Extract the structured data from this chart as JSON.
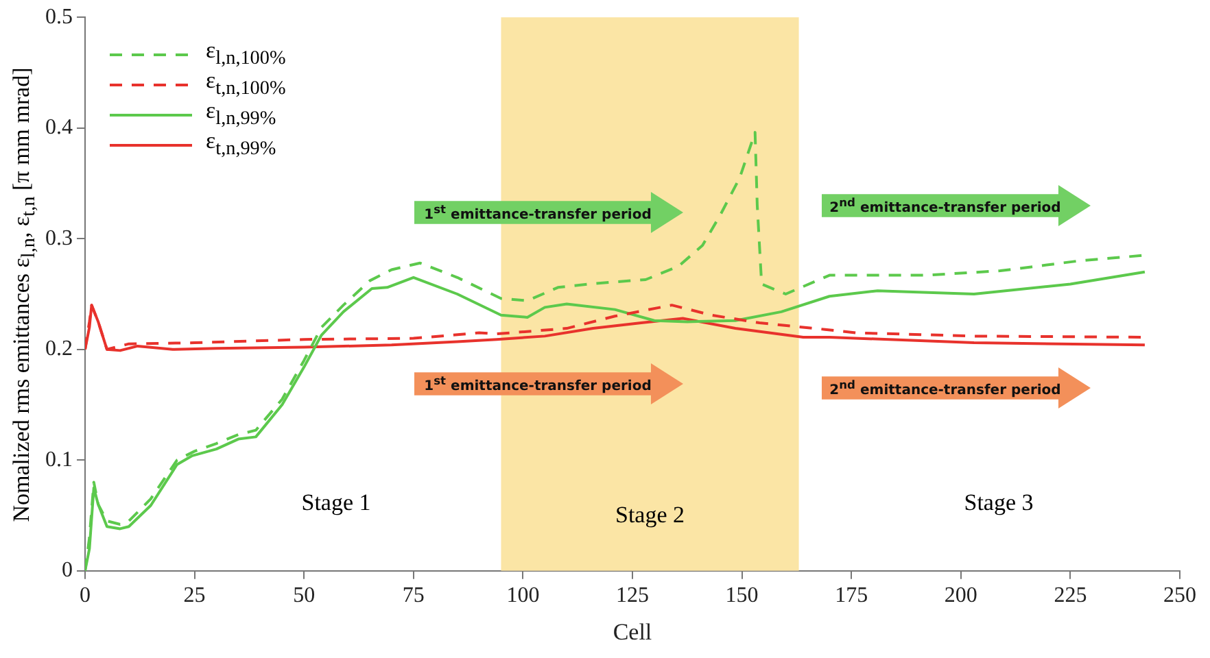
{
  "chart_data": {
    "type": "line",
    "xlabel": "Cell",
    "ylabel": "Nomalized rms emittances ε$_{l,n}$, ε$_{t,n}$ [π mm mrad]",
    "xlim": [
      0,
      250
    ],
    "ylim": [
      0,
      0.5
    ],
    "xticks": [
      0,
      25,
      50,
      75,
      100,
      125,
      150,
      175,
      200,
      225,
      250
    ],
    "yticks": [
      0,
      0.1,
      0.2,
      0.3,
      0.4,
      0.5
    ],
    "grid": false,
    "legend": "top left",
    "series": [
      {
        "name": "ε$_{l,n,100%}$",
        "color": "#5cc94c",
        "line_style": "dashed",
        "x": [
          0,
          1,
          2,
          3,
          5,
          8,
          10,
          15,
          21,
          25,
          30,
          35,
          39,
          45,
          50,
          54,
          59,
          65,
          70,
          76.5,
          85,
          95,
          101,
          108,
          115,
          121,
          128,
          135.5,
          141,
          145,
          149.5,
          153,
          153.5,
          154.5,
          160,
          170,
          176,
          192,
          209,
          227,
          242
        ],
        "values": [
          0,
          0.03,
          0.08,
          0.06,
          0.045,
          0.042,
          0.045,
          0.065,
          0.1,
          0.108,
          0.115,
          0.123,
          0.127,
          0.155,
          0.19,
          0.22,
          0.24,
          0.262,
          0.272,
          0.278,
          0.265,
          0.246,
          0.244,
          0.256,
          0.259,
          0.261,
          0.263,
          0.275,
          0.294,
          0.321,
          0.355,
          0.396,
          0.33,
          0.259,
          0.25,
          0.267,
          0.267,
          0.267,
          0.271,
          0.28,
          0.285
        ]
      },
      {
        "name": "ε$_{t,n,100%}$",
        "color": "#e8322c",
        "line_style": "dashed",
        "x": [
          0,
          1,
          1.5,
          3,
          5,
          10,
          25,
          50,
          75,
          90,
          94,
          110,
          121,
          134,
          143,
          154,
          169,
          176,
          203,
          242
        ],
        "values": [
          0.2,
          0.225,
          0.24,
          0.225,
          0.2,
          0.205,
          0.206,
          0.209,
          0.21,
          0.215,
          0.214,
          0.219,
          0.23,
          0.24,
          0.231,
          0.224,
          0.218,
          0.215,
          0.212,
          0.211
        ]
      },
      {
        "name": "ε$_{l,n,99%}$",
        "color": "#5cc94c",
        "line_style": "solid",
        "x": [
          0,
          1,
          2,
          3,
          5,
          8,
          10,
          15,
          21,
          24.5,
          30,
          35,
          39,
          45,
          50,
          54,
          59,
          65.5,
          69,
          75,
          85,
          95,
          101,
          105,
          110,
          121,
          130,
          137.5,
          148.5,
          159,
          170,
          181,
          203,
          225,
          242
        ],
        "values": [
          0,
          0.02,
          0.075,
          0.06,
          0.04,
          0.038,
          0.04,
          0.059,
          0.096,
          0.104,
          0.11,
          0.119,
          0.121,
          0.15,
          0.184,
          0.213,
          0.234,
          0.255,
          0.256,
          0.265,
          0.25,
          0.231,
          0.229,
          0.238,
          0.241,
          0.236,
          0.226,
          0.225,
          0.226,
          0.234,
          0.248,
          0.253,
          0.25,
          0.259,
          0.27
        ]
      },
      {
        "name": "ε$_{t,n,99%}$",
        "color": "#e8322c",
        "line_style": "solid",
        "x": [
          0,
          1,
          1.5,
          3,
          5,
          8,
          12,
          20,
          30,
          50,
          70,
          85,
          94,
          105,
          116,
          127,
          136.5,
          148.5,
          164,
          170,
          203,
          242
        ],
        "values": [
          0.2,
          0.22,
          0.24,
          0.225,
          0.2,
          0.199,
          0.203,
          0.2,
          0.201,
          0.202,
          0.204,
          0.207,
          0.209,
          0.212,
          0.219,
          0.224,
          0.228,
          0.219,
          0.211,
          0.211,
          0.206,
          0.204
        ]
      }
    ],
    "bands": [
      {
        "axis": "x",
        "from": 95,
        "to": 163,
        "label": "Stage 2",
        "color": "#fbe5a5"
      }
    ],
    "annotations": [
      "Stage 1",
      "Stage 3",
      "1$^{st}$ emittance-transfer period",
      "2$^{nd}$ emittance-transfer period",
      "1$^{st}$ emittance-transfer period",
      "2$^{nd}$ emittance-transfer period"
    ]
  }
}
